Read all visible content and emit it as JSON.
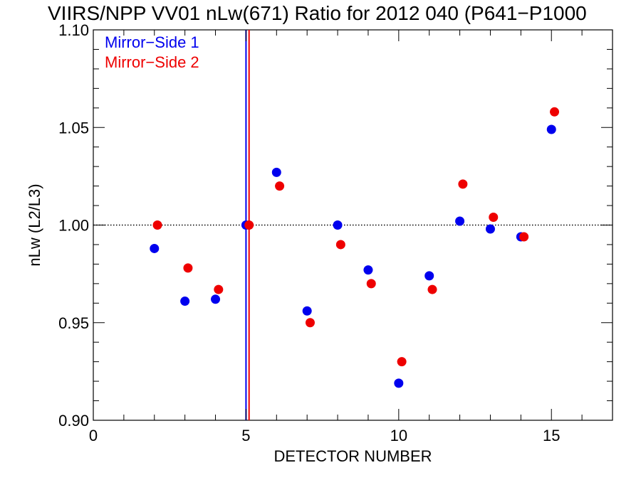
{
  "chart_data": {
    "type": "scatter",
    "title": "VIIRS/NPP VV01 nLw(671) Ratio for 2012 040 (P641−P1000",
    "xlabel": "DETECTOR NUMBER",
    "ylabel": "nLw (L2/L3)",
    "xlim": [
      0,
      17
    ],
    "ylim": [
      0.9,
      1.1
    ],
    "xticks": [
      0,
      5,
      10,
      15
    ],
    "xtick_labels": [
      "0",
      "5",
      "10",
      "15"
    ],
    "yticks": [
      0.9,
      0.95,
      1.0,
      1.05,
      1.1
    ],
    "ytick_labels": [
      "0.90",
      "0.95",
      "1.00",
      "1.05",
      "1.10"
    ],
    "reference_line": {
      "y": 1.0,
      "style": "dotted"
    },
    "vertical_lines": [
      {
        "x": 5.0,
        "color": "#0000ee"
      },
      {
        "x": 5.1,
        "color": "#ee0000"
      }
    ],
    "legend_position": "top-left",
    "grid": false,
    "series": [
      {
        "name": "Mirror−Side 1",
        "color": "#0000ee",
        "x": [
          2,
          3,
          4,
          5,
          6,
          7,
          8,
          9,
          10,
          11,
          12,
          13,
          14,
          15
        ],
        "y": [
          0.988,
          0.961,
          0.962,
          1.0,
          1.027,
          0.956,
          1.0,
          0.977,
          0.919,
          0.974,
          1.002,
          0.998,
          0.994,
          1.049
        ]
      },
      {
        "name": "Mirror−Side 2",
        "color": "#ee0000",
        "x": [
          2.1,
          3.1,
          4.1,
          5.1,
          6.1,
          7.1,
          8.1,
          9.1,
          10.1,
          11.1,
          12.1,
          13.1,
          14.1,
          15.1
        ],
        "y": [
          1.0,
          0.978,
          0.967,
          1.0,
          1.02,
          0.95,
          0.99,
          0.97,
          0.93,
          0.967,
          1.021,
          1.004,
          0.994,
          1.058
        ]
      }
    ]
  }
}
